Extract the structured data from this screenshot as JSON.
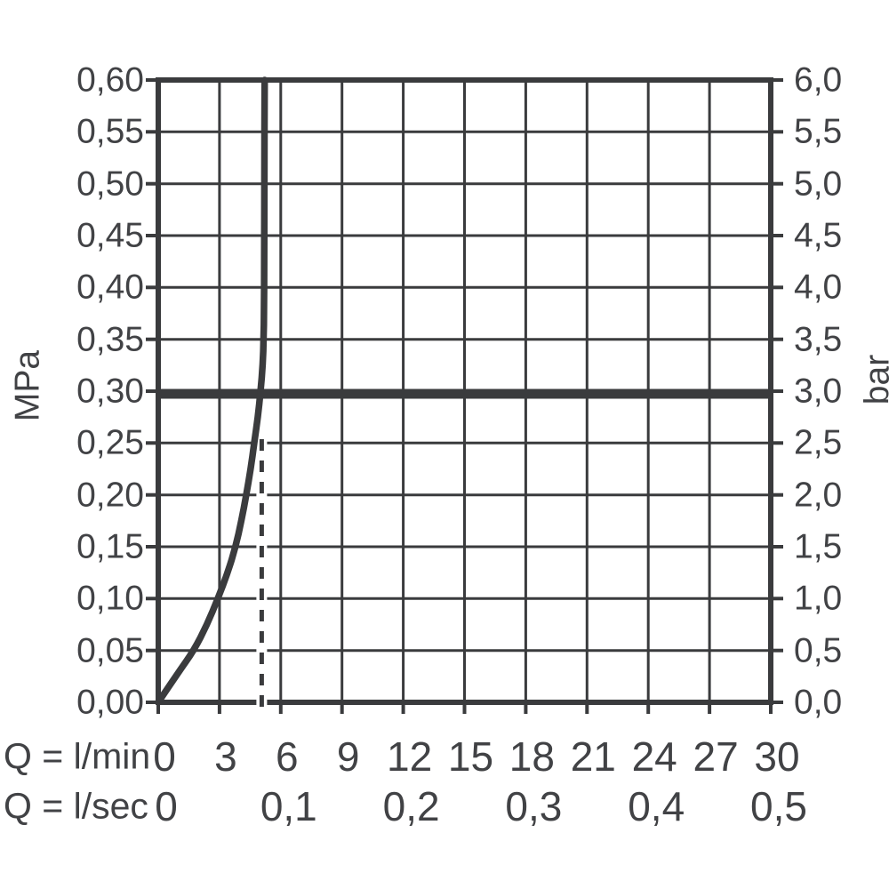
{
  "chart_data": {
    "type": "line",
    "title": "",
    "grid": true,
    "y_axis_left": {
      "unit": "MPa",
      "range": [
        0.0,
        0.6
      ],
      "tick_values": [
        0.6,
        0.55,
        0.5,
        0.45,
        0.4,
        0.35,
        0.3,
        0.25,
        0.2,
        0.15,
        0.1,
        0.05,
        0.0
      ],
      "tick_labels": [
        "0,60",
        "0,55",
        "0,50",
        "0,45",
        "0,40",
        "0,35",
        "0,30",
        "0,25",
        "0,20",
        "0,15",
        "0,10",
        "0,05",
        "0,00"
      ]
    },
    "y_axis_right": {
      "unit": "bar",
      "range": [
        0.0,
        6.0
      ],
      "tick_values": [
        6.0,
        5.5,
        5.0,
        4.5,
        4.0,
        3.5,
        3.0,
        2.5,
        2.0,
        1.5,
        1.0,
        0.5,
        0.0
      ],
      "tick_labels": [
        "6,0",
        "5,5",
        "5,0",
        "4,5",
        "4,0",
        "3,5",
        "3,0",
        "2,5",
        "2,0",
        "1,5",
        "1,0",
        "0,5",
        "0,0"
      ]
    },
    "x_axis_primary": {
      "label": "Q = l/min",
      "range": [
        0,
        30
      ],
      "tick_values": [
        0,
        3,
        6,
        9,
        12,
        15,
        18,
        21,
        24,
        27,
        30
      ],
      "tick_labels": [
        "0",
        "3",
        "6",
        "9",
        "12",
        "15",
        "18",
        "21",
        "24",
        "27",
        "30"
      ]
    },
    "x_axis_secondary": {
      "label": "Q = l/sec",
      "range": [
        0,
        0.5
      ],
      "tick_values_lmin": [
        0,
        6,
        12,
        18,
        24,
        30
      ],
      "tick_labels": [
        "0",
        "0,1",
        "0,2",
        "0,3",
        "0,4",
        "0,5"
      ]
    },
    "series": [
      {
        "name": "pressure-flow-curve",
        "style": "solid",
        "points_q_lmin_vs_mpa": [
          [
            0,
            0
          ],
          [
            0.96,
            0.028
          ],
          [
            1.74,
            0.05
          ],
          [
            2.39,
            0.075
          ],
          [
            2.92,
            0.1
          ],
          [
            3.4,
            0.125
          ],
          [
            3.79,
            0.15
          ],
          [
            4.07,
            0.175
          ],
          [
            4.31,
            0.2
          ],
          [
            4.53,
            0.225
          ],
          [
            4.7,
            0.25
          ],
          [
            4.88,
            0.275
          ],
          [
            5.01,
            0.3
          ],
          [
            5.12,
            0.326
          ],
          [
            5.16,
            0.351
          ],
          [
            5.18,
            0.377
          ],
          [
            5.19,
            0.42
          ],
          [
            5.2,
            0.506
          ],
          [
            5.21,
            0.6
          ]
        ]
      }
    ],
    "reference_lines": [
      {
        "name": "operating-pressure-line",
        "orientation": "horizontal",
        "mpa": 0.3,
        "bar": 3.0,
        "style": "thick-solid"
      },
      {
        "name": "flow-limit-line",
        "orientation": "vertical",
        "q_lmin": 5.07,
        "from_mpa": 0.0,
        "to_mpa": 0.252,
        "style": "dashed"
      }
    ],
    "colors": {
      "line": "#3a3b3d",
      "text": "#414245",
      "background": "#ffffff"
    }
  }
}
